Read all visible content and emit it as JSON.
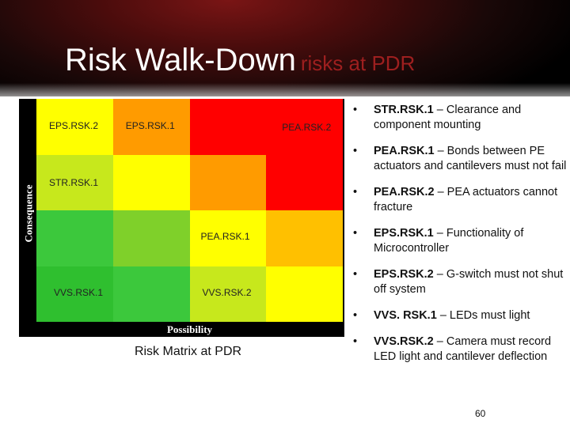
{
  "title": {
    "main": "Risk Walk-Down",
    "sub": "risks at PDR"
  },
  "matrix": {
    "y_axis_label": "Consequence",
    "x_axis_label": "Possibility",
    "caption": "Risk Matrix at PDR",
    "colors": {
      "dark_green": "#2fbf2f",
      "light_green": "#7fd02a",
      "lime": "#c7e81c",
      "yellow": "#fff200",
      "gold": "#ffc000",
      "orange": "#ff9b00",
      "red": "#ff0000"
    },
    "rows": [
      {
        "cells": [
          {
            "color": "#ffff00",
            "label": "EPS.RSK.2"
          },
          {
            "color": "#ff9b00",
            "label": "EPS.RSK.1"
          },
          {
            "color": "#ff0000",
            "label": ""
          },
          {
            "color": "#ff0000",
            "label": "PEA.RSK.2"
          }
        ]
      },
      {
        "cells": [
          {
            "color": "#c7e81c",
            "label": "STR.RSK.1"
          },
          {
            "color": "#ffff00",
            "label": ""
          },
          {
            "color": "#ff9b00",
            "label": ""
          },
          {
            "color": "#ff0000",
            "label": ""
          }
        ]
      },
      {
        "cells": [
          {
            "color": "#3cc83c",
            "label": ""
          },
          {
            "color": "#7fd02a",
            "label": ""
          },
          {
            "color": "#ffff00",
            "label": "PEA.RSK.1"
          },
          {
            "color": "#ffc000",
            "label": ""
          }
        ]
      },
      {
        "cells": [
          {
            "color": "#2fbf2f",
            "label": "VVS.RSK.1"
          },
          {
            "color": "#3cc83c",
            "label": ""
          },
          {
            "color": "#c7e81c",
            "label": "VVS.RSK.2"
          },
          {
            "color": "#ffff00",
            "label": ""
          }
        ]
      }
    ]
  },
  "bullets": [
    {
      "id": "STR.RSK.1",
      "text": "– Clearance and component mounting"
    },
    {
      "id": "PEA.RSK.1",
      "text": "– Bonds between PE actuators and cantilevers must not fail"
    },
    {
      "id": "PEA.RSK.2",
      "text": "– PEA actuators cannot fracture"
    },
    {
      "id": "EPS.RSK.1",
      "text": "– Functionality of Microcontroller"
    },
    {
      "id": "EPS.RSK.2",
      "text": "– G-switch must not shut off system"
    },
    {
      "id": "VVS. RSK.1",
      "text": "– LEDs must light"
    },
    {
      "id": "VVS.RSK.2",
      "text": "– Camera must record LED light and cantilever deflection"
    }
  ],
  "bullet_glyph": "•",
  "page_number": "60"
}
